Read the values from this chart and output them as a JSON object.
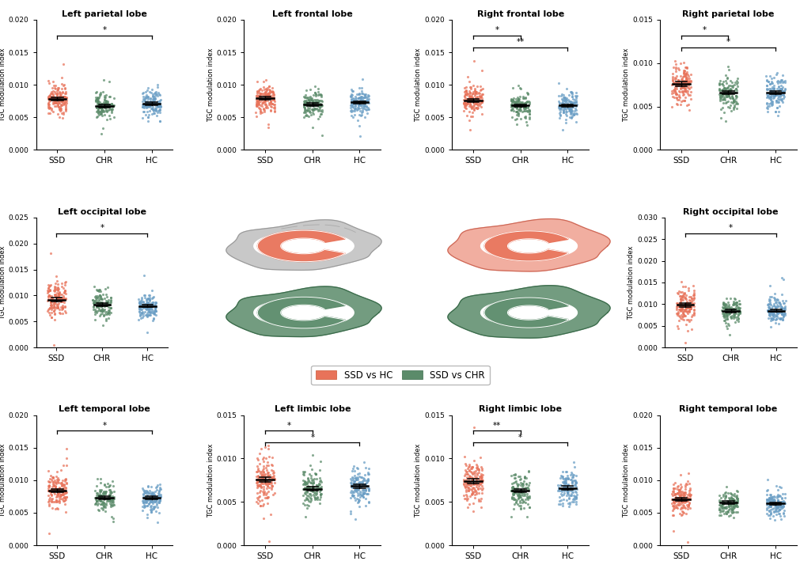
{
  "panels": [
    {
      "title": "Left parietal lobe",
      "ylim": [
        0.0,
        0.02
      ],
      "yticks": [
        0.0,
        0.005,
        0.01,
        0.015,
        0.02
      ],
      "ytick_labels": [
        "0.000",
        "0.005",
        "0.010",
        "0.015",
        "0.020"
      ],
      "groups": [
        "SSD",
        "CHR",
        "HC"
      ],
      "means": [
        0.0078,
        0.00675,
        0.0071
      ],
      "sems": [
        0.00025,
        0.00022,
        0.00022
      ],
      "sig_brackets": [
        [
          "SSD",
          "HC",
          "*"
        ]
      ],
      "n_points": [
        160,
        130,
        140
      ]
    },
    {
      "title": "Left frontal lobe",
      "ylim": [
        0.0,
        0.02
      ],
      "yticks": [
        0.0,
        0.005,
        0.01,
        0.015,
        0.02
      ],
      "ytick_labels": [
        "0.000",
        "0.005",
        "0.010",
        "0.015",
        "0.020"
      ],
      "groups": [
        "SSD",
        "CHR",
        "HC"
      ],
      "means": [
        0.0079,
        0.007,
        0.0073
      ],
      "sems": [
        0.00025,
        0.00022,
        0.00022
      ],
      "sig_brackets": [],
      "n_points": [
        160,
        130,
        140
      ]
    },
    {
      "title": "Right frontal lobe",
      "ylim": [
        0.0,
        0.02
      ],
      "yticks": [
        0.0,
        0.005,
        0.01,
        0.015,
        0.02
      ],
      "ytick_labels": [
        "0.000",
        "0.005",
        "0.010",
        "0.015",
        "0.020"
      ],
      "groups": [
        "SSD",
        "CHR",
        "HC"
      ],
      "means": [
        0.0076,
        0.0068,
        0.0068
      ],
      "sems": [
        0.00025,
        0.00022,
        0.00022
      ],
      "sig_brackets": [
        [
          "SSD",
          "CHR",
          "*"
        ],
        [
          "SSD",
          "HC",
          "**"
        ]
      ],
      "n_points": [
        160,
        130,
        140
      ]
    },
    {
      "title": "Right parietal lobe",
      "ylim": [
        0.0,
        0.015
      ],
      "yticks": [
        0.0,
        0.005,
        0.01,
        0.015
      ],
      "ytick_labels": [
        "0.000",
        "0.005",
        "0.010",
        "0.015"
      ],
      "groups": [
        "SSD",
        "CHR",
        "HC"
      ],
      "means": [
        0.0076,
        0.0066,
        0.0066
      ],
      "sems": [
        0.00025,
        0.00022,
        0.00022
      ],
      "sig_brackets": [
        [
          "SSD",
          "CHR",
          "*"
        ],
        [
          "SSD",
          "HC",
          "*"
        ]
      ],
      "n_points": [
        160,
        130,
        140
      ]
    },
    {
      "title": "Left occipital lobe",
      "ylim": [
        0.0,
        0.025
      ],
      "yticks": [
        0.0,
        0.005,
        0.01,
        0.015,
        0.02,
        0.025
      ],
      "ytick_labels": [
        "0.000",
        "0.005",
        "0.010",
        "0.015",
        "0.020",
        "0.025"
      ],
      "groups": [
        "SSD",
        "CHR",
        "HC"
      ],
      "means": [
        0.0092,
        0.0082,
        0.008
      ],
      "sems": [
        0.00035,
        0.0003,
        0.00028
      ],
      "sig_brackets": [
        [
          "SSD",
          "HC",
          "*"
        ]
      ],
      "n_points": [
        160,
        130,
        140
      ]
    },
    {
      "title": "Right occipital lobe",
      "ylim": [
        0.0,
        0.03
      ],
      "yticks": [
        0.0,
        0.005,
        0.01,
        0.015,
        0.02,
        0.025,
        0.03
      ],
      "ytick_labels": [
        "0.000",
        "0.005",
        "0.010",
        "0.015",
        "0.020",
        "0.025",
        "0.030"
      ],
      "groups": [
        "SSD",
        "CHR",
        "HC"
      ],
      "means": [
        0.0098,
        0.0084,
        0.0085
      ],
      "sems": [
        0.00045,
        0.00035,
        0.00032
      ],
      "sig_brackets": [
        [
          "SSD",
          "HC",
          "*"
        ]
      ],
      "n_points": [
        160,
        130,
        140
      ]
    },
    {
      "title": "Left temporal lobe",
      "ylim": [
        0.0,
        0.02
      ],
      "yticks": [
        0.0,
        0.005,
        0.01,
        0.015,
        0.02
      ],
      "ytick_labels": [
        "0.000",
        "0.005",
        "0.010",
        "0.015",
        "0.020"
      ],
      "groups": [
        "SSD",
        "CHR",
        "HC"
      ],
      "means": [
        0.0084,
        0.0073,
        0.0073
      ],
      "sems": [
        0.00028,
        0.00022,
        0.00022
      ],
      "sig_brackets": [
        [
          "SSD",
          "HC",
          "*"
        ]
      ],
      "n_points": [
        160,
        130,
        140
      ]
    },
    {
      "title": "Left limbic lobe",
      "ylim": [
        0.0,
        0.015
      ],
      "yticks": [
        0.0,
        0.005,
        0.01,
        0.015
      ],
      "ytick_labels": [
        "0.000",
        "0.005",
        "0.010",
        "0.015"
      ],
      "groups": [
        "SSD",
        "CHR",
        "HC"
      ],
      "means": [
        0.0076,
        0.0065,
        0.0068
      ],
      "sems": [
        0.00028,
        0.00022,
        0.00022
      ],
      "sig_brackets": [
        [
          "SSD",
          "CHR",
          "*"
        ],
        [
          "SSD",
          "HC",
          "*"
        ]
      ],
      "n_points": [
        160,
        130,
        140
      ]
    },
    {
      "title": "Right limbic lobe",
      "ylim": [
        0.0,
        0.015
      ],
      "yticks": [
        0.0,
        0.005,
        0.01,
        0.015
      ],
      "ytick_labels": [
        "0.000",
        "0.005",
        "0.010",
        "0.015"
      ],
      "groups": [
        "SSD",
        "CHR",
        "HC"
      ],
      "means": [
        0.0074,
        0.0063,
        0.0066
      ],
      "sems": [
        0.00025,
        0.0002,
        0.0002
      ],
      "sig_brackets": [
        [
          "SSD",
          "CHR",
          "**"
        ],
        [
          "SSD",
          "HC",
          "*"
        ]
      ],
      "n_points": [
        160,
        130,
        140
      ]
    },
    {
      "title": "Right temporal lobe",
      "ylim": [
        0.0,
        0.02
      ],
      "yticks": [
        0.0,
        0.005,
        0.01,
        0.015,
        0.02
      ],
      "ytick_labels": [
        "0.000",
        "0.005",
        "0.010",
        "0.015",
        "0.020"
      ],
      "groups": [
        "SSD",
        "CHR",
        "HC"
      ],
      "means": [
        0.0071,
        0.0066,
        0.0064
      ],
      "sems": [
        0.00025,
        0.00022,
        0.0002
      ],
      "sig_brackets": [],
      "n_points": [
        160,
        130,
        140
      ]
    }
  ],
  "colors": {
    "SSD": "#E8735A",
    "CHR": "#5B8B6A",
    "HC": "#6A9EC5"
  },
  "ylabel": "TGC modulation index",
  "legend_labels": [
    "SSD vs HC",
    "SSD vs CHR"
  ],
  "legend_colors": [
    "#E8735A",
    "#5B8B6A"
  ],
  "background_color": "#FFFFFF"
}
